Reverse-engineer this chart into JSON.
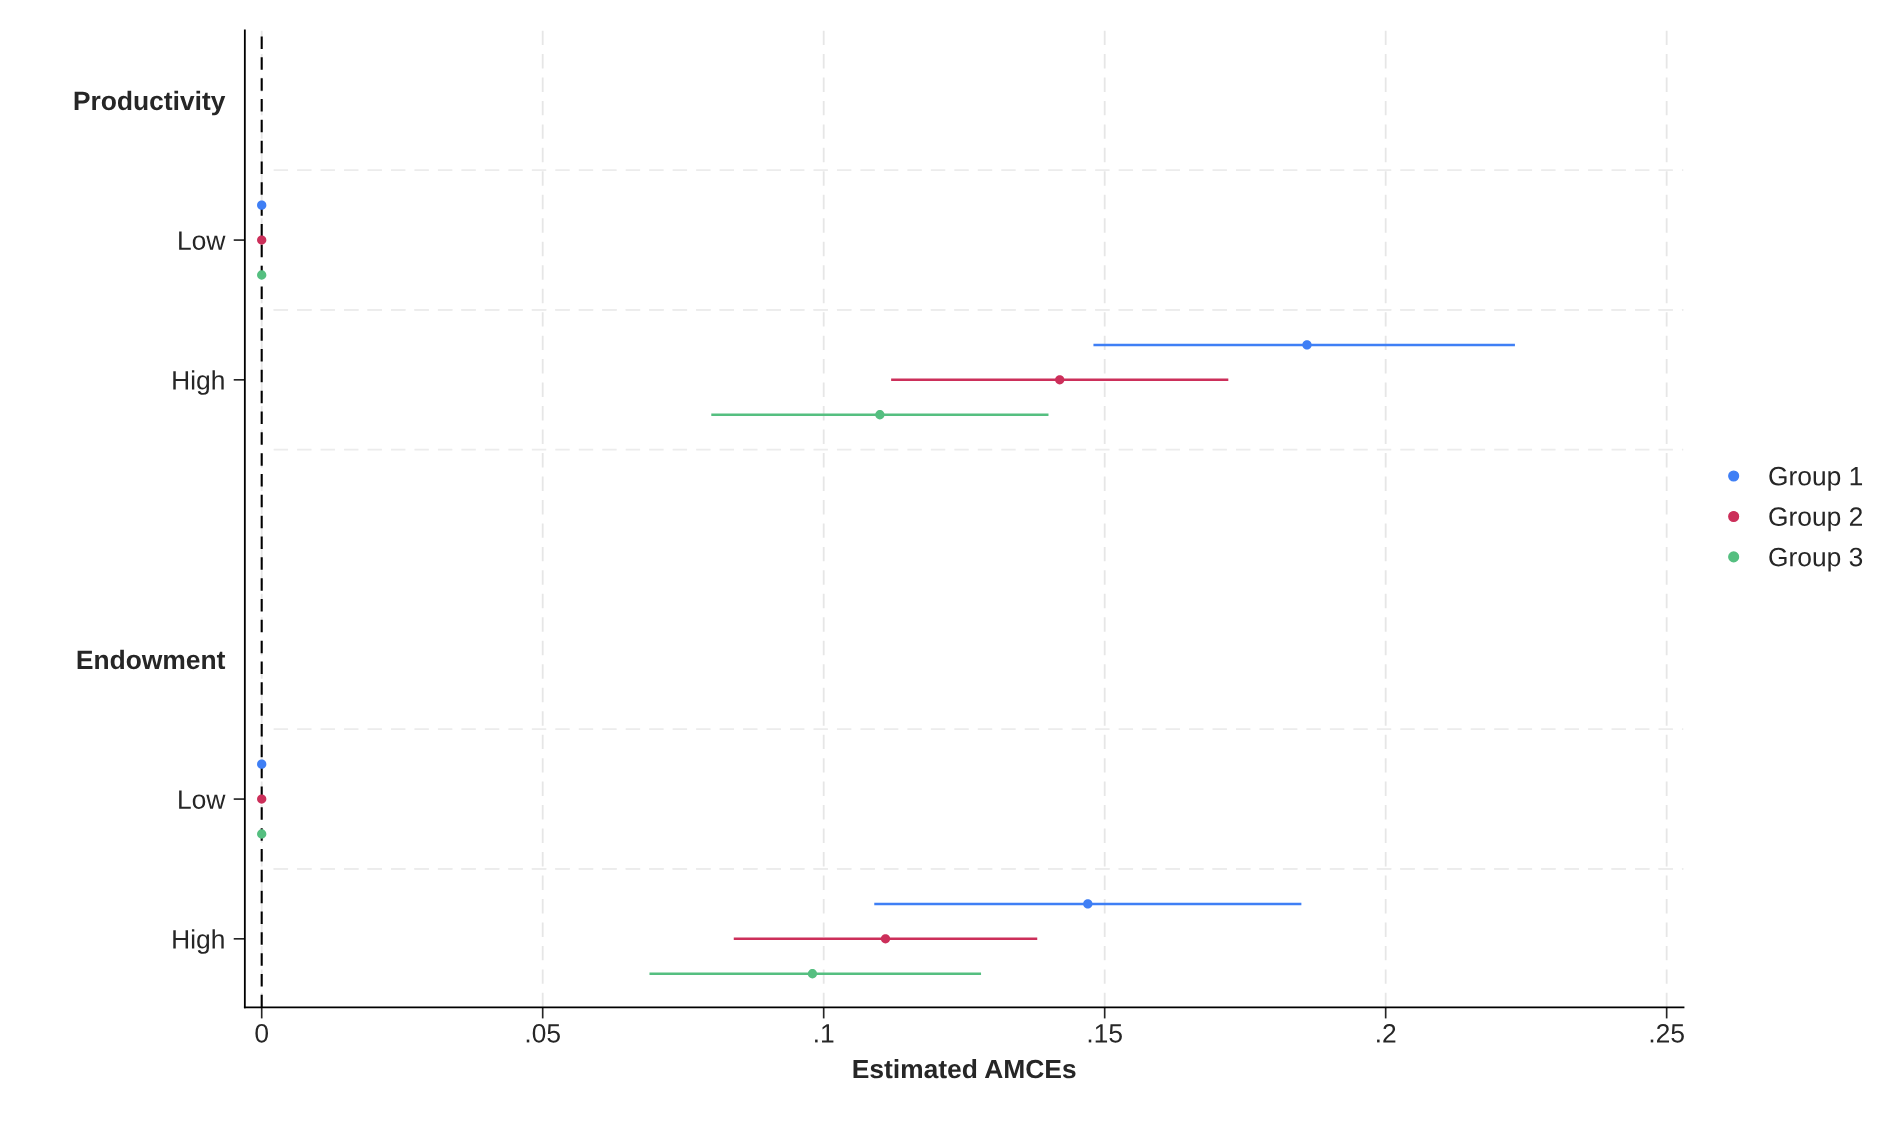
{
  "chart_data": {
    "type": "scatter",
    "orientation": "horizontal",
    "xlabel": "Estimated AMCEs",
    "categories": [
      "Productivity",
      "Low",
      "High",
      null,
      "Endowment",
      "Low",
      "High"
    ],
    "series": [
      {
        "name": "Group 1",
        "color": "#3f7ff5",
        "values": [
          null,
          0,
          0.186,
          null,
          null,
          0,
          0.147
        ],
        "errors": [
          null,
          null,
          [
            0.148,
            0.223
          ],
          null,
          null,
          null,
          [
            0.109,
            0.185
          ]
        ]
      },
      {
        "name": "Group 2",
        "color": "#cc2f5a",
        "values": [
          null,
          0,
          0.142,
          null,
          null,
          0,
          0.111
        ],
        "errors": [
          null,
          null,
          [
            0.112,
            0.172
          ],
          null,
          null,
          null,
          [
            0.084,
            0.138
          ]
        ]
      },
      {
        "name": "Group 3",
        "color": "#55bf80",
        "values": [
          null,
          0,
          0.11,
          null,
          null,
          0,
          0.098
        ],
        "errors": [
          null,
          null,
          [
            0.08,
            0.14
          ],
          null,
          null,
          null,
          [
            0.069,
            0.128
          ]
        ]
      }
    ],
    "xlim": [
      -0.003,
      0.253
    ],
    "xticks": [
      0,
      {
        "value": 0.05,
        "label": ".05"
      },
      {
        "value": 0.1,
        "label": ".1"
      },
      {
        "value": 0.15,
        "label": ".15"
      },
      {
        "value": 0.2,
        "label": ".2"
      },
      {
        "value": 0.25,
        "label": ".25"
      }
    ],
    "ref_lines": [
      {
        "axis": "x",
        "value": 0,
        "color": "#000000",
        "line_style": "dashed"
      }
    ],
    "grid": true,
    "legend": "right",
    "marker": "circle"
  }
}
